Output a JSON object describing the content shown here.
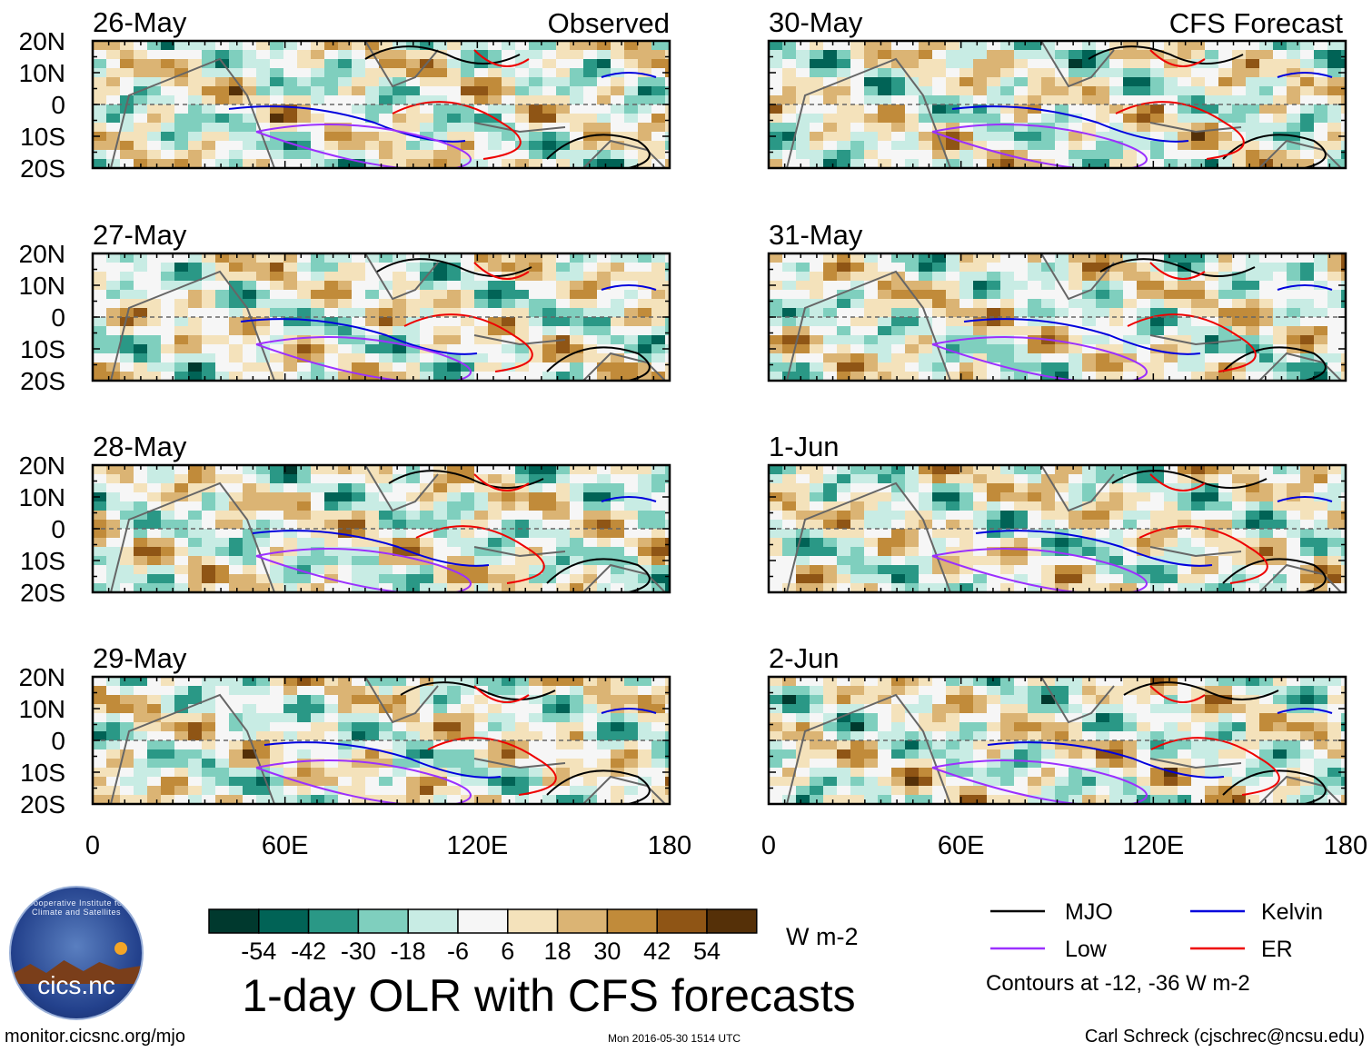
{
  "title": "1-day OLR with CFS forecasts",
  "columns": {
    "observed_label": "Observed",
    "forecast_label": "CFS Forecast"
  },
  "chart_data": {
    "type": "heatmap",
    "variable": "OLR anomaly",
    "units": "W m-2",
    "x_range": [
      0,
      180
    ],
    "y_range": [
      -20,
      20
    ],
    "x_ticks": [
      "0",
      "60E",
      "120E",
      "180"
    ],
    "y_ticks": [
      "20N",
      "10N",
      "0",
      "10S",
      "20S"
    ],
    "panels": [
      {
        "date": "26-May",
        "type": "Observed"
      },
      {
        "date": "27-May",
        "type": "Observed"
      },
      {
        "date": "28-May",
        "type": "Observed"
      },
      {
        "date": "29-May",
        "type": "Observed"
      },
      {
        "date": "30-May",
        "type": "CFS Forecast"
      },
      {
        "date": "31-May",
        "type": "CFS Forecast"
      },
      {
        "date": "1-Jun",
        "type": "CFS Forecast"
      },
      {
        "date": "2-Jun",
        "type": "CFS Forecast"
      }
    ],
    "colorbar": {
      "levels": [
        "-54",
        "-42",
        "-30",
        "-18",
        "-6",
        "6",
        "18",
        "30",
        "42",
        "54"
      ],
      "colors": [
        "#00392e",
        "#016356",
        "#2a9886",
        "#7fcfbe",
        "#c8ece4",
        "#f6f6f6",
        "#f4e2bb",
        "#dbb474",
        "#c18b3a",
        "#8f5515",
        "#553008"
      ]
    },
    "legend": [
      {
        "label": "MJO",
        "color": "#000000"
      },
      {
        "label": "Kelvin",
        "color": "#0000dd"
      },
      {
        "label": "Low",
        "color": "#9b30ff"
      },
      {
        "label": "ER",
        "color": "#ee0000"
      }
    ],
    "contour_note": "Contours at -12, -36 W m-2"
  },
  "footer": {
    "website": "monitor.cicsnc.org/mjo",
    "timestamp": "Mon 2016-05-30 1514 UTC",
    "author": "Carl Schreck (cjschrec@ncsu.edu)"
  },
  "logo": {
    "text": "cics.nc",
    "ring_text": "Cooperative Institute for Climate and Satellites"
  }
}
